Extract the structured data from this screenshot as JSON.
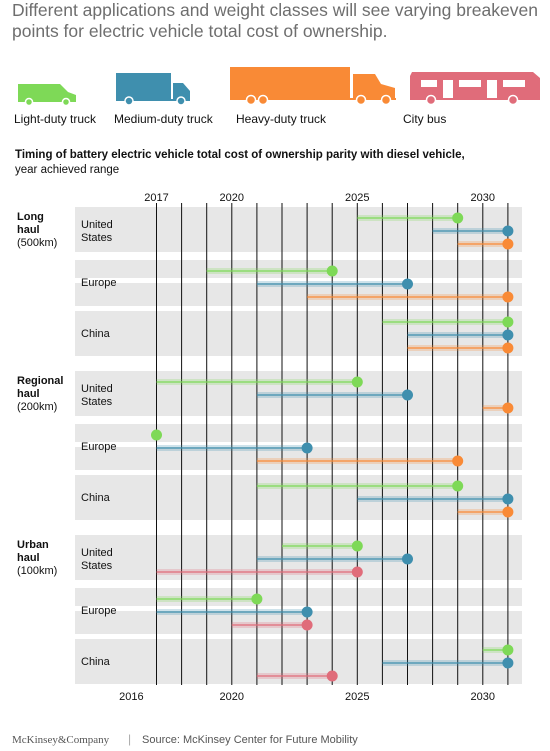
{
  "headline": "Different applications and weight classes will see varying breakeven points for electric vehicle total cost of ownership.",
  "colors": {
    "light": "#7ed957",
    "medium": "#3f8fae",
    "heavy": "#f98a36",
    "bus": "#e06c7a",
    "band": "#e7e7e7",
    "grid": "#111111"
  },
  "vehicles": [
    {
      "key": "light",
      "label": "Light-duty truck",
      "icon": "van-icon"
    },
    {
      "key": "medium",
      "label": "Medium-duty truck",
      "icon": "box-truck-icon"
    },
    {
      "key": "heavy",
      "label": "Heavy-duty truck",
      "icon": "semi-truck-icon"
    },
    {
      "key": "bus",
      "label": "City bus",
      "icon": "bus-icon"
    }
  ],
  "subtitle": "Timing of battery electric vehicle total cost of ownership parity with diesel vehicle,",
  "subtitle2": "year achieved range",
  "footer": {
    "logo": "McKinsey&Company",
    "separator": "|",
    "source": "Source: McKinsey Center for Future Mobility"
  },
  "chart_data": {
    "type": "range",
    "x_axis": {
      "min": 2016,
      "max": 2031,
      "top_ticks": [
        2017,
        2020,
        2025,
        2030
      ],
      "bottom_ticks": [
        2016,
        2020,
        2025,
        2030
      ],
      "grid_years": [
        2017,
        2018,
        2019,
        2020,
        2021,
        2022,
        2023,
        2024,
        2025,
        2026,
        2027,
        2028,
        2029,
        2030,
        2031
      ]
    },
    "segments": [
      {
        "name": "Long haul",
        "detail": "(500km)",
        "regions": [
          {
            "name": "United States",
            "ranges": [
              {
                "vehicle": "light",
                "start": 2025,
                "end": 2029
              },
              {
                "vehicle": "medium",
                "start": 2028,
                "end": 2031
              },
              {
                "vehicle": "heavy",
                "start": 2029,
                "end": 2031
              }
            ]
          },
          {
            "name": "Europe",
            "ranges": [
              {
                "vehicle": "light",
                "start": 2019,
                "end": 2024
              },
              {
                "vehicle": "medium",
                "start": 2021,
                "end": 2027
              },
              {
                "vehicle": "heavy",
                "start": 2023,
                "end": 2031
              }
            ]
          },
          {
            "name": "China",
            "ranges": [
              {
                "vehicle": "light",
                "start": 2026,
                "end": 2031
              },
              {
                "vehicle": "medium",
                "start": 2027,
                "end": 2031
              },
              {
                "vehicle": "heavy",
                "start": 2027,
                "end": 2031
              }
            ]
          }
        ]
      },
      {
        "name": "Regional haul",
        "detail": "(200km)",
        "regions": [
          {
            "name": "United States",
            "ranges": [
              {
                "vehicle": "light",
                "start": 2017,
                "end": 2025
              },
              {
                "vehicle": "medium",
                "start": 2021,
                "end": 2027
              },
              {
                "vehicle": "heavy",
                "start": 2030,
                "end": 2031
              }
            ]
          },
          {
            "name": "Europe",
            "ranges": [
              {
                "vehicle": "light",
                "start": 2017,
                "end": 2017
              },
              {
                "vehicle": "medium",
                "start": 2017,
                "end": 2023
              },
              {
                "vehicle": "heavy",
                "start": 2021,
                "end": 2029
              }
            ]
          },
          {
            "name": "China",
            "ranges": [
              {
                "vehicle": "light",
                "start": 2021,
                "end": 2029
              },
              {
                "vehicle": "medium",
                "start": 2025,
                "end": 2031
              },
              {
                "vehicle": "heavy",
                "start": 2029,
                "end": 2031
              }
            ]
          }
        ]
      },
      {
        "name": "Urban haul",
        "detail": "(100km)",
        "regions": [
          {
            "name": "United States",
            "ranges": [
              {
                "vehicle": "light",
                "start": 2022,
                "end": 2025
              },
              {
                "vehicle": "medium",
                "start": 2021,
                "end": 2027
              },
              {
                "vehicle": "bus",
                "start": 2017,
                "end": 2025
              }
            ]
          },
          {
            "name": "Europe",
            "ranges": [
              {
                "vehicle": "light",
                "start": 2017,
                "end": 2021
              },
              {
                "vehicle": "medium",
                "start": 2017,
                "end": 2023
              },
              {
                "vehicle": "bus",
                "start": 2020,
                "end": 2023
              }
            ]
          },
          {
            "name": "China",
            "ranges": [
              {
                "vehicle": "light",
                "start": 2030,
                "end": 2031
              },
              {
                "vehicle": "medium",
                "start": 2026,
                "end": 2031
              },
              {
                "vehicle": "bus",
                "start": 2021,
                "end": 2024
              }
            ]
          }
        ]
      }
    ]
  }
}
